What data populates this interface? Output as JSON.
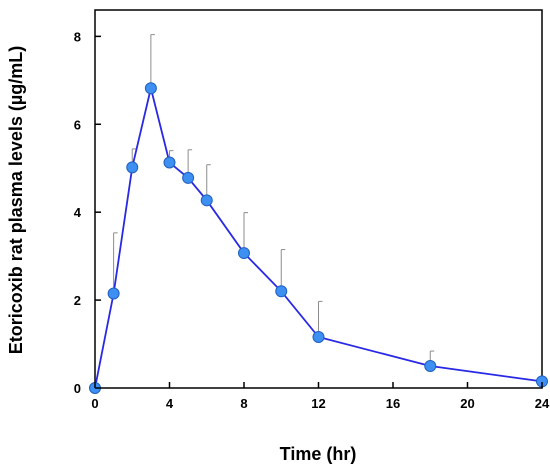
{
  "chart_data": {
    "type": "line",
    "xlabel": "Time (hr)",
    "ylabel": "Etoricoxib rat plasma levels (µg/mL)",
    "xlim": [
      0,
      24
    ],
    "ylim": [
      0,
      8.6
    ],
    "xticks": [
      0,
      4,
      8,
      12,
      16,
      20,
      24
    ],
    "yticks": [
      0,
      2,
      4,
      6,
      8
    ],
    "grid": false,
    "line_color": "#2828e6",
    "marker_color": "#3d8ff2",
    "errorbar_color": "#8c8c8c",
    "series": [
      {
        "x": [
          0,
          1,
          2,
          3,
          4,
          5,
          6,
          8,
          10,
          12,
          18,
          24
        ],
        "y": [
          0.0,
          2.15,
          5.02,
          6.82,
          5.13,
          4.78,
          4.27,
          3.07,
          2.2,
          1.16,
          0.5,
          0.15
        ],
        "error": [
          0,
          1.38,
          0.42,
          1.22,
          0.27,
          0.64,
          0.81,
          0.92,
          0.95,
          0.81,
          0.34,
          0
        ]
      }
    ]
  }
}
